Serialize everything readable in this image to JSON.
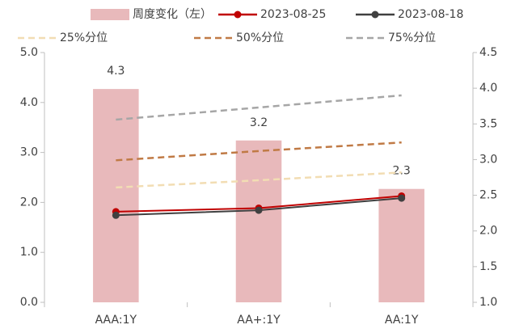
{
  "chart_data": {
    "type": "combo",
    "categories": [
      "AAA:1Y",
      "AA+:1Y",
      "AA:1Y"
    ],
    "series": [
      {
        "name": "周度变化（左）",
        "type": "bar",
        "color": "#e8b9bb",
        "values": [
          4.27,
          3.24,
          2.27
        ],
        "value_labels": [
          "4.3",
          "3.2",
          "2.3"
        ]
      },
      {
        "name": "2023-08-25",
        "type": "line",
        "axis": "y2",
        "color": "#c00000",
        "marker": true,
        "values": [
          2.27,
          2.32,
          2.49
        ]
      },
      {
        "name": "2023-08-18",
        "type": "line",
        "axis": "y2",
        "color": "#404040",
        "marker": true,
        "values": [
          2.22,
          2.29,
          2.46
        ]
      },
      {
        "name": "25%分位",
        "type": "line",
        "axis": "y2",
        "color": "#f2ddb3",
        "dashed": true,
        "values": [
          2.61,
          2.71,
          2.82
        ]
      },
      {
        "name": "50%分位",
        "type": "line",
        "axis": "y2",
        "color": "#c07a45",
        "dashed": true,
        "values": [
          2.99,
          3.12,
          3.24
        ]
      },
      {
        "name": "75%分位",
        "type": "line",
        "axis": "y2",
        "color": "#a6a6a6",
        "dashed": true,
        "values": [
          3.56,
          3.73,
          3.9
        ]
      }
    ],
    "ylim": [
      0,
      5
    ],
    "yticks": [
      {
        "value": 0,
        "label": "0.0"
      },
      {
        "value": 1,
        "label": "1.0"
      },
      {
        "value": 2,
        "label": "2.0"
      },
      {
        "value": 3,
        "label": "3.0"
      },
      {
        "value": 4,
        "label": "4.0"
      },
      {
        "value": 5,
        "label": "5.0"
      }
    ],
    "y2lim": [
      1,
      4.5
    ],
    "y2ticks": [
      {
        "value": 1,
        "label": "1.0"
      },
      {
        "value": 1.5,
        "label": "1.5"
      },
      {
        "value": 2,
        "label": "2.0"
      },
      {
        "value": 2.5,
        "label": "2.5"
      },
      {
        "value": 3,
        "label": "3.0"
      },
      {
        "value": 3.5,
        "label": "3.5"
      },
      {
        "value": 4,
        "label": "4.0"
      },
      {
        "value": 4.5,
        "label": "4.5"
      }
    ],
    "legend": "top"
  }
}
